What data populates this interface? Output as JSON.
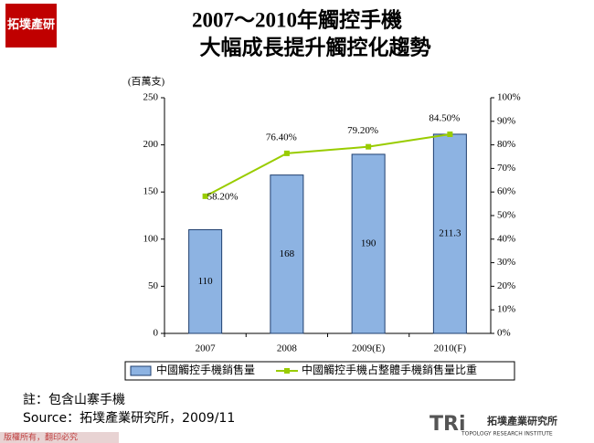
{
  "chart_data": {
    "type": "bar-line",
    "title": "2007～2010年觸控手機",
    "subtitle": "大幅成長提升觸控化趨勢",
    "y_label": "(百萬支)",
    "categories": [
      "2007",
      "2008",
      "2009(E)",
      "2010(F)"
    ],
    "series": [
      {
        "name": "中國觸控手機銷售量",
        "type": "bar",
        "color": "#8db3e2",
        "values": [
          110,
          168,
          190,
          211.3
        ]
      },
      {
        "name": "中國觸控手機占整體手機銷售量比重",
        "type": "line",
        "axis": "y2",
        "color": "#99cc00",
        "values": [
          58.2,
          76.4,
          79.2,
          84.5
        ],
        "value_labels": [
          "58.20%",
          "76.40%",
          "79.20%",
          "84.50%"
        ]
      }
    ],
    "ylim": [
      0,
      250
    ],
    "yticks": [
      0,
      50,
      100,
      150,
      200,
      250
    ],
    "y2lim": [
      0,
      100
    ],
    "y2ticks": [
      {
        "value": 0,
        "label": "0%"
      },
      {
        "value": 10,
        "label": "10%"
      },
      {
        "value": 20,
        "label": "20%"
      },
      {
        "value": 30,
        "label": "30%"
      },
      {
        "value": 40,
        "label": "40%"
      },
      {
        "value": 50,
        "label": "50%"
      },
      {
        "value": 60,
        "label": "60%"
      },
      {
        "value": 70,
        "label": "70%"
      },
      {
        "value": 80,
        "label": "80%"
      },
      {
        "value": 90,
        "label": "90%"
      },
      {
        "value": 100,
        "label": "100%"
      }
    ],
    "legend": "bottom"
  },
  "notes": [
    "註：包含山寨手機",
    "Source：拓墣產業研究所，2009/11"
  ],
  "logo": {
    "corner": "拓墣產研",
    "brand": "TRi",
    "name": "拓墣產業研究所",
    "english": "TOPOLOGY RESEARCH INSTITUTE"
  },
  "footer": "版權所有，翻印必究"
}
